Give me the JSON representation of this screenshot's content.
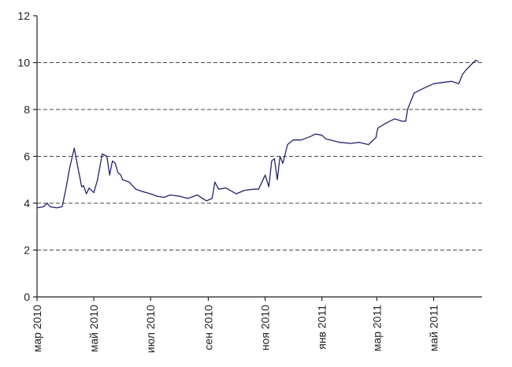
{
  "chart_data": {
    "type": "line",
    "title": "",
    "xlabel": "",
    "ylabel": "",
    "ylim": [
      0,
      12
    ],
    "yticks": [
      0,
      2,
      4,
      6,
      8,
      10,
      12
    ],
    "grid": "horizontal dashed at 2, 4, 6, 8, 10",
    "x_ticks": [
      "мар 2010",
      "май 2010",
      "июл 2010",
      "сен 2010",
      "ноя 2010",
      "янв 2011",
      "мар 2011",
      "май 2011"
    ],
    "series_color": "#23236e",
    "series": [
      {
        "x": [
          "2010-03-01",
          "2010-03-08",
          "2010-03-12",
          "2010-03-15",
          "2010-03-22",
          "2010-03-28",
          "2010-04-01",
          "2010-04-05",
          "2010-04-10",
          "2010-04-14",
          "2010-04-18",
          "2010-04-20",
          "2010-04-23",
          "2010-04-26",
          "2010-05-01",
          "2010-05-05",
          "2010-05-10",
          "2010-05-15",
          "2010-05-18",
          "2010-05-21",
          "2010-05-24",
          "2010-05-27",
          "2010-05-30",
          "2010-06-01",
          "2010-06-08",
          "2010-06-15",
          "2010-06-22",
          "2010-07-01",
          "2010-07-08",
          "2010-07-15",
          "2010-07-22",
          "2010-08-01",
          "2010-08-10",
          "2010-08-20",
          "2010-08-30",
          "2010-09-05",
          "2010-09-08",
          "2010-09-12",
          "2010-09-20",
          "2010-10-01",
          "2010-10-10",
          "2010-10-20",
          "2010-10-25",
          "2010-11-01",
          "2010-11-05",
          "2010-11-08",
          "2010-11-11",
          "2010-11-14",
          "2010-11-17",
          "2010-11-20",
          "2010-11-25",
          "2010-12-01",
          "2010-12-10",
          "2010-12-20",
          "2010-12-25",
          "2011-01-01",
          "2011-01-05",
          "2011-01-10",
          "2011-01-20",
          "2011-02-01",
          "2011-02-10",
          "2011-02-20",
          "2011-02-28",
          "2011-03-02",
          "2011-03-10",
          "2011-03-20",
          "2011-03-28",
          "2011-04-01",
          "2011-04-03",
          "2011-04-10",
          "2011-04-20",
          "2011-05-01",
          "2011-05-10",
          "2011-05-20",
          "2011-05-28",
          "2011-06-01",
          "2011-06-05",
          "2011-06-10",
          "2011-06-15",
          "2011-06-18"
        ],
        "y": [
          3.8,
          3.85,
          4.0,
          3.85,
          3.8,
          3.85,
          4.6,
          5.5,
          6.35,
          5.5,
          4.7,
          4.75,
          4.4,
          4.65,
          4.45,
          5.0,
          6.1,
          6.0,
          5.2,
          5.8,
          5.7,
          5.3,
          5.2,
          5.0,
          4.9,
          4.6,
          4.5,
          4.4,
          4.3,
          4.25,
          4.35,
          4.3,
          4.2,
          4.35,
          4.1,
          4.2,
          4.9,
          4.6,
          4.65,
          4.4,
          4.55,
          4.6,
          4.6,
          5.2,
          4.7,
          5.8,
          5.9,
          5.0,
          6.0,
          5.7,
          6.5,
          6.7,
          6.7,
          6.85,
          6.95,
          6.9,
          6.75,
          6.7,
          6.6,
          6.55,
          6.6,
          6.5,
          6.8,
          7.2,
          7.4,
          7.6,
          7.5,
          7.5,
          8.0,
          8.7,
          8.9,
          9.1,
          9.15,
          9.2,
          9.1,
          9.5,
          9.7,
          9.9,
          10.1,
          10.05
        ]
      }
    ]
  }
}
